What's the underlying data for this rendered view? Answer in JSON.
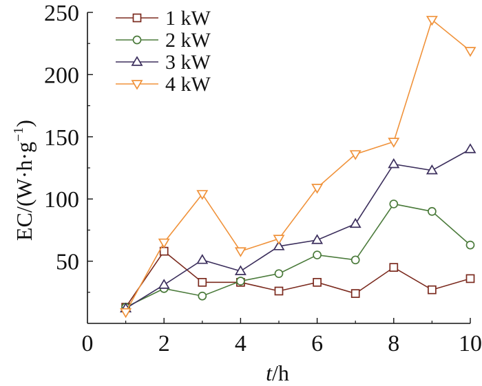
{
  "chart_data": {
    "type": "line",
    "title": "",
    "xlabel_italic": "t",
    "xlabel_rest": "/h",
    "ylabel_main": "EC/(W·h·g",
    "ylabel_sup": "−1",
    "ylabel_close": ")",
    "xlim": [
      0,
      10
    ],
    "ylim": [
      0,
      250
    ],
    "x_ticks": [
      0,
      2,
      4,
      6,
      8,
      10
    ],
    "y_ticks": [
      50,
      100,
      150,
      200,
      250
    ],
    "legend_position": "top-left",
    "grid": false,
    "x": [
      1,
      2,
      3,
      4,
      5,
      6,
      7,
      8,
      9,
      10
    ],
    "series": [
      {
        "name": "1 kW",
        "marker": "square",
        "color": "#7b2a1e",
        "values": [
          13,
          58,
          33,
          33,
          26,
          33,
          24,
          45,
          27,
          36
        ]
      },
      {
        "name": "2 kW",
        "marker": "circle",
        "color": "#4a7a3a",
        "values": [
          13,
          28,
          22,
          34,
          40,
          55,
          51,
          96,
          90,
          63
        ]
      },
      {
        "name": "3 kW",
        "marker": "triangle-up",
        "color": "#3b2e5c",
        "values": [
          12,
          31,
          51,
          42,
          62,
          67,
          80,
          128,
          123,
          140
        ]
      },
      {
        "name": "4 kW",
        "marker": "triangle-down",
        "color": "#f0923a",
        "values": [
          9,
          65,
          104,
          58,
          68,
          109,
          136,
          146,
          244,
          219
        ]
      }
    ]
  }
}
